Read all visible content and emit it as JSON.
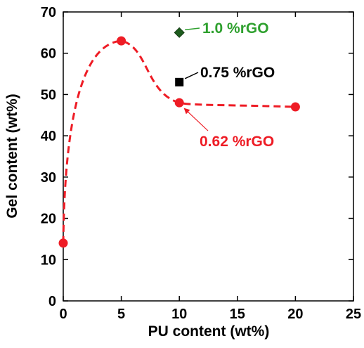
{
  "chart_data": {
    "type": "scatter",
    "title": "",
    "xlabel": "PU content (wt%)",
    "ylabel": "Gel content (wt%)",
    "xlim": [
      0,
      25
    ],
    "ylim": [
      0,
      70
    ],
    "x_ticks": [
      0,
      5,
      10,
      15,
      20,
      25
    ],
    "y_ticks": [
      0,
      10,
      20,
      30,
      40,
      50,
      60,
      70
    ],
    "grid": false,
    "series": [
      {
        "name": "0.62 %rGO",
        "marker": "circle",
        "color": "#ee1c25",
        "line": "dashed smooth",
        "x": [
          0,
          5,
          10,
          20
        ],
        "y": [
          14,
          63,
          48,
          47
        ]
      },
      {
        "name": "0.75 %rGO",
        "marker": "square",
        "color": "#000000",
        "x": [
          10
        ],
        "y": [
          53
        ]
      },
      {
        "name": "1.0 %rGO",
        "marker": "diamond",
        "color": "#1e5c1e",
        "x": [
          10
        ],
        "y": [
          65
        ]
      }
    ],
    "annotations": [
      {
        "text": "1.0 %rGO",
        "color": "#2ea02e",
        "points_to": [
          10,
          65
        ]
      },
      {
        "text": "0.75 %rGO",
        "color": "#000000",
        "points_to": [
          10,
          53
        ]
      },
      {
        "text": "0.62 %rGO",
        "color": "#ee1c25",
        "points_to": [
          10,
          48
        ]
      }
    ]
  }
}
